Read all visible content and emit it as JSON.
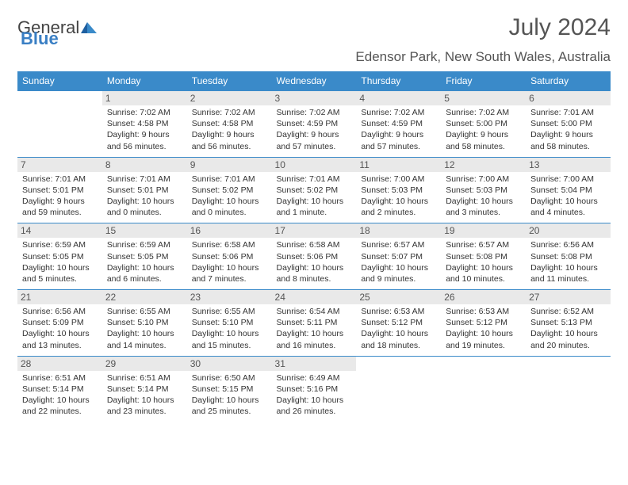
{
  "branding": {
    "general": "General",
    "blue": "Blue"
  },
  "title": "July 2024",
  "location": "Edensor Park, New South Wales, Australia",
  "colors": {
    "header_bg": "#3a8ac9",
    "header_text": "#ffffff",
    "daynum_bg": "#e9e9e9",
    "text": "#333333",
    "border": "#3a8ac9"
  },
  "day_names": [
    "Sunday",
    "Monday",
    "Tuesday",
    "Wednesday",
    "Thursday",
    "Friday",
    "Saturday"
  ],
  "weeks": [
    [
      null,
      {
        "d": "1",
        "sr": "Sunrise: 7:02 AM",
        "ss": "Sunset: 4:58 PM",
        "dl1": "Daylight: 9 hours",
        "dl2": "and 56 minutes."
      },
      {
        "d": "2",
        "sr": "Sunrise: 7:02 AM",
        "ss": "Sunset: 4:58 PM",
        "dl1": "Daylight: 9 hours",
        "dl2": "and 56 minutes."
      },
      {
        "d": "3",
        "sr": "Sunrise: 7:02 AM",
        "ss": "Sunset: 4:59 PM",
        "dl1": "Daylight: 9 hours",
        "dl2": "and 57 minutes."
      },
      {
        "d": "4",
        "sr": "Sunrise: 7:02 AM",
        "ss": "Sunset: 4:59 PM",
        "dl1": "Daylight: 9 hours",
        "dl2": "and 57 minutes."
      },
      {
        "d": "5",
        "sr": "Sunrise: 7:02 AM",
        "ss": "Sunset: 5:00 PM",
        "dl1": "Daylight: 9 hours",
        "dl2": "and 58 minutes."
      },
      {
        "d": "6",
        "sr": "Sunrise: 7:01 AM",
        "ss": "Sunset: 5:00 PM",
        "dl1": "Daylight: 9 hours",
        "dl2": "and 58 minutes."
      }
    ],
    [
      {
        "d": "7",
        "sr": "Sunrise: 7:01 AM",
        "ss": "Sunset: 5:01 PM",
        "dl1": "Daylight: 9 hours",
        "dl2": "and 59 minutes."
      },
      {
        "d": "8",
        "sr": "Sunrise: 7:01 AM",
        "ss": "Sunset: 5:01 PM",
        "dl1": "Daylight: 10 hours",
        "dl2": "and 0 minutes."
      },
      {
        "d": "9",
        "sr": "Sunrise: 7:01 AM",
        "ss": "Sunset: 5:02 PM",
        "dl1": "Daylight: 10 hours",
        "dl2": "and 0 minutes."
      },
      {
        "d": "10",
        "sr": "Sunrise: 7:01 AM",
        "ss": "Sunset: 5:02 PM",
        "dl1": "Daylight: 10 hours",
        "dl2": "and 1 minute."
      },
      {
        "d": "11",
        "sr": "Sunrise: 7:00 AM",
        "ss": "Sunset: 5:03 PM",
        "dl1": "Daylight: 10 hours",
        "dl2": "and 2 minutes."
      },
      {
        "d": "12",
        "sr": "Sunrise: 7:00 AM",
        "ss": "Sunset: 5:03 PM",
        "dl1": "Daylight: 10 hours",
        "dl2": "and 3 minutes."
      },
      {
        "d": "13",
        "sr": "Sunrise: 7:00 AM",
        "ss": "Sunset: 5:04 PM",
        "dl1": "Daylight: 10 hours",
        "dl2": "and 4 minutes."
      }
    ],
    [
      {
        "d": "14",
        "sr": "Sunrise: 6:59 AM",
        "ss": "Sunset: 5:05 PM",
        "dl1": "Daylight: 10 hours",
        "dl2": "and 5 minutes."
      },
      {
        "d": "15",
        "sr": "Sunrise: 6:59 AM",
        "ss": "Sunset: 5:05 PM",
        "dl1": "Daylight: 10 hours",
        "dl2": "and 6 minutes."
      },
      {
        "d": "16",
        "sr": "Sunrise: 6:58 AM",
        "ss": "Sunset: 5:06 PM",
        "dl1": "Daylight: 10 hours",
        "dl2": "and 7 minutes."
      },
      {
        "d": "17",
        "sr": "Sunrise: 6:58 AM",
        "ss": "Sunset: 5:06 PM",
        "dl1": "Daylight: 10 hours",
        "dl2": "and 8 minutes."
      },
      {
        "d": "18",
        "sr": "Sunrise: 6:57 AM",
        "ss": "Sunset: 5:07 PM",
        "dl1": "Daylight: 10 hours",
        "dl2": "and 9 minutes."
      },
      {
        "d": "19",
        "sr": "Sunrise: 6:57 AM",
        "ss": "Sunset: 5:08 PM",
        "dl1": "Daylight: 10 hours",
        "dl2": "and 10 minutes."
      },
      {
        "d": "20",
        "sr": "Sunrise: 6:56 AM",
        "ss": "Sunset: 5:08 PM",
        "dl1": "Daylight: 10 hours",
        "dl2": "and 11 minutes."
      }
    ],
    [
      {
        "d": "21",
        "sr": "Sunrise: 6:56 AM",
        "ss": "Sunset: 5:09 PM",
        "dl1": "Daylight: 10 hours",
        "dl2": "and 13 minutes."
      },
      {
        "d": "22",
        "sr": "Sunrise: 6:55 AM",
        "ss": "Sunset: 5:10 PM",
        "dl1": "Daylight: 10 hours",
        "dl2": "and 14 minutes."
      },
      {
        "d": "23",
        "sr": "Sunrise: 6:55 AM",
        "ss": "Sunset: 5:10 PM",
        "dl1": "Daylight: 10 hours",
        "dl2": "and 15 minutes."
      },
      {
        "d": "24",
        "sr": "Sunrise: 6:54 AM",
        "ss": "Sunset: 5:11 PM",
        "dl1": "Daylight: 10 hours",
        "dl2": "and 16 minutes."
      },
      {
        "d": "25",
        "sr": "Sunrise: 6:53 AM",
        "ss": "Sunset: 5:12 PM",
        "dl1": "Daylight: 10 hours",
        "dl2": "and 18 minutes."
      },
      {
        "d": "26",
        "sr": "Sunrise: 6:53 AM",
        "ss": "Sunset: 5:12 PM",
        "dl1": "Daylight: 10 hours",
        "dl2": "and 19 minutes."
      },
      {
        "d": "27",
        "sr": "Sunrise: 6:52 AM",
        "ss": "Sunset: 5:13 PM",
        "dl1": "Daylight: 10 hours",
        "dl2": "and 20 minutes."
      }
    ],
    [
      {
        "d": "28",
        "sr": "Sunrise: 6:51 AM",
        "ss": "Sunset: 5:14 PM",
        "dl1": "Daylight: 10 hours",
        "dl2": "and 22 minutes."
      },
      {
        "d": "29",
        "sr": "Sunrise: 6:51 AM",
        "ss": "Sunset: 5:14 PM",
        "dl1": "Daylight: 10 hours",
        "dl2": "and 23 minutes."
      },
      {
        "d": "30",
        "sr": "Sunrise: 6:50 AM",
        "ss": "Sunset: 5:15 PM",
        "dl1": "Daylight: 10 hours",
        "dl2": "and 25 minutes."
      },
      {
        "d": "31",
        "sr": "Sunrise: 6:49 AM",
        "ss": "Sunset: 5:16 PM",
        "dl1": "Daylight: 10 hours",
        "dl2": "and 26 minutes."
      },
      null,
      null,
      null
    ]
  ]
}
